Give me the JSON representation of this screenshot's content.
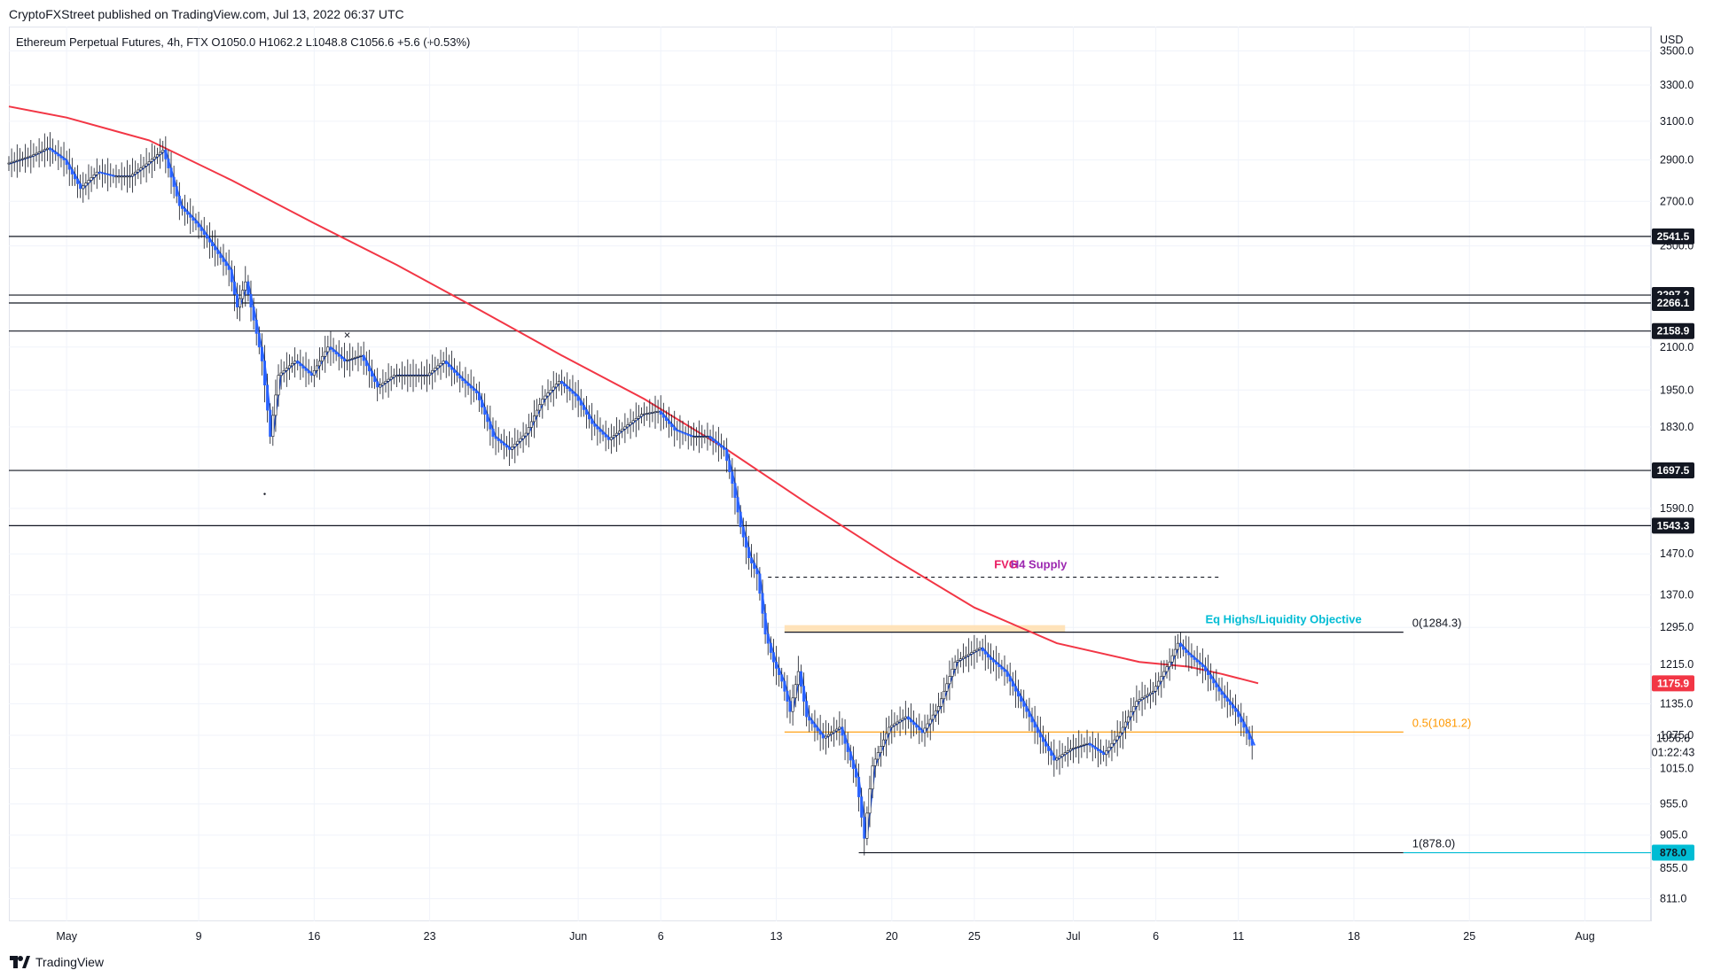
{
  "header": {
    "published": "CryptoFXStreet published on TradingView.com, Jul 13, 2022 06:37 UTC",
    "legend": "Ethereum Perpetual Futures, 4h, FTX  O1050.0  H1062.2  L1048.8  C1056.6  +5.6 (+0.53%)"
  },
  "footer": {
    "brand": "TradingView"
  },
  "colors": {
    "candle": "#2962ff",
    "ma": "#f23645",
    "fvg": "#e91e63",
    "supply": "#9c27b0",
    "eq_highs": "#00bcd4",
    "fib_mid": "#ff9800",
    "highlight_box": "#ffe0b2"
  },
  "chart_data": {
    "type": "candlestick",
    "symbol": "Ethereum Perpetual Futures",
    "timeframe": "4h",
    "exchange": "FTX",
    "currency": "USD",
    "ohlc_last": {
      "open": 1050.0,
      "high": 1062.2,
      "low": 1048.8,
      "close": 1056.6,
      "change": 5.6,
      "change_pct": 0.53
    },
    "y_axis": {
      "label": "USD",
      "scale": "log",
      "range": [
        780,
        3650
      ],
      "ticks": [
        3500.0,
        3300.0,
        3100.0,
        2900.0,
        2700.0,
        2500.0,
        2100.0,
        1950.0,
        1830.0,
        1590.0,
        1470.0,
        1370.0,
        1295.0,
        1215.0,
        1135.0,
        1075.0,
        1015.0,
        955.0,
        905.0,
        855.0,
        811.0
      ]
    },
    "x_axis": {
      "ticks": [
        "May",
        "9",
        "16",
        "23",
        "Jun",
        "6",
        "13",
        "20",
        "25",
        "Jul",
        "6",
        "11",
        "18",
        "25",
        "Aug"
      ],
      "tick_day": [
        0,
        8,
        15,
        22,
        31,
        36,
        43,
        50,
        55,
        61,
        66,
        71,
        78,
        85,
        92
      ],
      "range_day": [
        -3.5,
        96
      ]
    },
    "price_series": [
      [
        -3.5,
        2880
      ],
      [
        -2,
        2920
      ],
      [
        -1,
        2960
      ],
      [
        0,
        2900
      ],
      [
        1,
        2760
      ],
      [
        2,
        2840
      ],
      [
        3,
        2820
      ],
      [
        4,
        2820
      ],
      [
        5,
        2880
      ],
      [
        6,
        2950
      ],
      [
        7,
        2680
      ],
      [
        8,
        2600
      ],
      [
        9,
        2500
      ],
      [
        10,
        2400
      ],
      [
        10.5,
        2250
      ],
      [
        11,
        2350
      ],
      [
        11.5,
        2200
      ],
      [
        12,
        2050
      ],
      [
        12.5,
        1800
      ],
      [
        13,
        2000
      ],
      [
        14,
        2050
      ],
      [
        15,
        2000
      ],
      [
        16,
        2100
      ],
      [
        17,
        2050
      ],
      [
        18,
        2070
      ],
      [
        19,
        1960
      ],
      [
        20,
        2000
      ],
      [
        21,
        2000
      ],
      [
        22,
        2000
      ],
      [
        23,
        2050
      ],
      [
        24,
        1990
      ],
      [
        25,
        1940
      ],
      [
        26,
        1800
      ],
      [
        27,
        1760
      ],
      [
        28,
        1810
      ],
      [
        29,
        1920
      ],
      [
        30,
        1980
      ],
      [
        31,
        1930
      ],
      [
        32,
        1840
      ],
      [
        33,
        1790
      ],
      [
        34,
        1830
      ],
      [
        35,
        1870
      ],
      [
        36,
        1880
      ],
      [
        37,
        1820
      ],
      [
        38,
        1800
      ],
      [
        39,
        1800
      ],
      [
        40,
        1760
      ],
      [
        40.5,
        1660
      ],
      [
        41,
        1540
      ],
      [
        41.5,
        1460
      ],
      [
        42,
        1420
      ],
      [
        42.5,
        1280
      ],
      [
        43,
        1220
      ],
      [
        43.5,
        1180
      ],
      [
        44,
        1120
      ],
      [
        44.5,
        1200
      ],
      [
        45,
        1110
      ],
      [
        46,
        1070
      ],
      [
        47,
        1090
      ],
      [
        48,
        1000
      ],
      [
        48.5,
        900
      ],
      [
        49,
        1020
      ],
      [
        50,
        1090
      ],
      [
        51,
        1110
      ],
      [
        52,
        1080
      ],
      [
        53,
        1130
      ],
      [
        54,
        1220
      ],
      [
        55,
        1240
      ],
      [
        55.5,
        1250
      ],
      [
        56,
        1230
      ],
      [
        57,
        1200
      ],
      [
        58,
        1140
      ],
      [
        59,
        1080
      ],
      [
        60,
        1030
      ],
      [
        61,
        1050
      ],
      [
        62,
        1060
      ],
      [
        63,
        1040
      ],
      [
        64,
        1080
      ],
      [
        65,
        1140
      ],
      [
        66,
        1160
      ],
      [
        67,
        1220
      ],
      [
        67.5,
        1260
      ],
      [
        68,
        1240
      ],
      [
        69,
        1210
      ],
      [
        70,
        1160
      ],
      [
        71,
        1120
      ],
      [
        71.5,
        1090
      ],
      [
        72,
        1056.6
      ]
    ],
    "moving_average": [
      [
        -3.5,
        3180
      ],
      [
        0,
        3120
      ],
      [
        5,
        3000
      ],
      [
        10,
        2800
      ],
      [
        15,
        2600
      ],
      [
        20,
        2420
      ],
      [
        25,
        2240
      ],
      [
        30,
        2070
      ],
      [
        35,
        1920
      ],
      [
        40,
        1760
      ],
      [
        45,
        1600
      ],
      [
        50,
        1460
      ],
      [
        55,
        1340
      ],
      [
        60,
        1260
      ],
      [
        65,
        1220
      ],
      [
        68,
        1210
      ],
      [
        70,
        1195
      ],
      [
        72.2,
        1175.9
      ]
    ],
    "horizontal_levels": [
      {
        "label": "2541.5",
        "price": 2541.5,
        "from_day": -3.5,
        "to_day": 96
      },
      {
        "label": "2297.2",
        "price": 2297.2,
        "from_day": -3.5,
        "to_day": 96
      },
      {
        "label": "2266.1",
        "price": 2266.1,
        "from_day": -3.5,
        "to_day": 96
      },
      {
        "label": "2158.9",
        "price": 2158.9,
        "from_day": -3.5,
        "to_day": 96
      },
      {
        "label": "1697.5",
        "price": 1697.5,
        "from_day": -3.5,
        "to_day": 96
      },
      {
        "label": "1543.3",
        "price": 1543.3,
        "from_day": -3.5,
        "to_day": 96
      }
    ],
    "price_labels": [
      {
        "label": "1175.9",
        "price": 1175.9,
        "style": "ma"
      },
      {
        "label": "1056.6",
        "price": 1056.6,
        "style": "current"
      },
      {
        "label": "01:22:43",
        "price": 1056.6,
        "style": "countdown"
      },
      {
        "label": "878.0",
        "price": 878.0,
        "style": "fib"
      }
    ],
    "fib_levels": [
      {
        "label": "0(1284.3)",
        "price": 1284.3,
        "from_day": 43.5,
        "to_day": 81
      },
      {
        "label": "0.5(1081.2)",
        "price": 1081.2,
        "from_day": 43.5,
        "to_day": 81
      },
      {
        "label": "1(878.0)",
        "price": 878.0,
        "from_day": 48,
        "to_day": 81
      }
    ],
    "zones": [
      {
        "label": "FVG",
        "color": "fvg",
        "price": 1412
      },
      {
        "label": "H4 Supply",
        "color": "supply",
        "price": 1412
      },
      {
        "label": "Eq Highs/Liquidity Objective",
        "color": "eq_highs",
        "price": 1290
      }
    ],
    "highlight_box": {
      "from_day": 43.5,
      "to_day": 60.5,
      "price_top": 1300,
      "price_bottom": 1284
    },
    "dashed_line": {
      "price": 1412,
      "from_day": 42.5,
      "to_day": 70
    },
    "annotation_marker": {
      "text": "×",
      "day": 17,
      "price": 2130
    },
    "low_dot": {
      "day": 12,
      "price": 1630
    }
  }
}
